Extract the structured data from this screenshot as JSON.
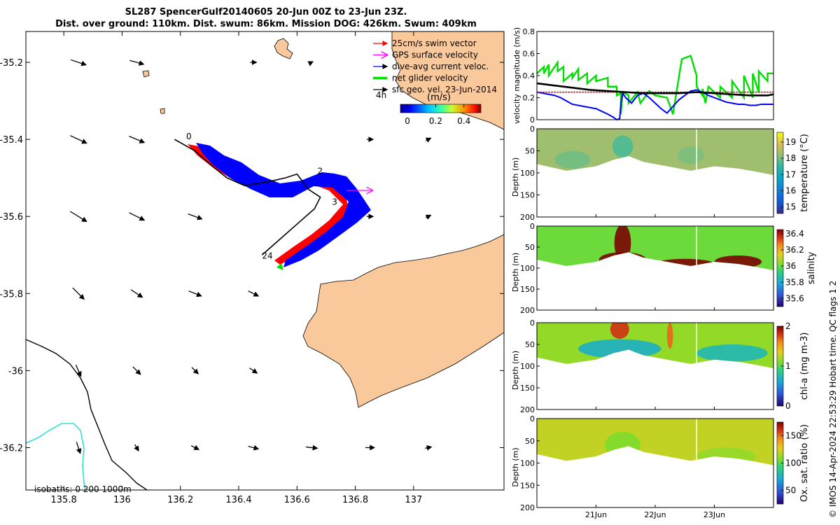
{
  "title_line1": "SL287 SpencerGulf20140605 20-Jun 00Z to 23-Jun 23Z.",
  "title_line2": "Dist. over ground: 110km. Dist. swum: 86km. Mission DOG: 426km. Swum: 409km",
  "credit": "© IMOS 14-Apr-2024 22:53:29 Hobart time. QC flags 1  2",
  "chart_data": [
    {
      "type": "map",
      "x_ticks": [
        "135.8",
        "136",
        "136.2",
        "136.4",
        "136.6",
        "136.8",
        "137"
      ],
      "x_tick_values": [
        135.8,
        136.0,
        136.2,
        136.4,
        136.6,
        136.8,
        137.0
      ],
      "y_ticks": [
        "-35.2",
        "-35.4",
        "-35.6",
        "-35.8",
        "-36",
        "-36.2"
      ],
      "y_tick_values": [
        -35.2,
        -35.4,
        -35.6,
        -35.8,
        -36.0,
        -36.2
      ],
      "xlim": [
        135.67,
        137.31
      ],
      "ylim": [
        -36.31,
        -35.12
      ],
      "legend": [
        {
          "label": "25cm/s swim vector",
          "color": "#ff0000"
        },
        {
          "label": "GPS surface velocity",
          "color": "#ff00ff"
        },
        {
          "label": "dive-avg current veloc.",
          "color": "#0000ff"
        },
        {
          "label": "net glider velocity",
          "color": "#00dd00"
        },
        {
          "label": "sfc geo. vel. 23-Jun-2014",
          "color": "#000000"
        }
      ],
      "legend_placement": "top-right",
      "time_label": "4h",
      "colorbar_title": "(m/s)",
      "colorbar_ticks": [
        "0",
        "0.2",
        "0.4"
      ],
      "colorbar_tick_values": [
        0,
        0.2,
        0.4
      ],
      "colorbar_range": [
        -0.05,
        0.52
      ],
      "isobaths_label": "isobaths: 0   200  1000m",
      "track_day_labels": [
        {
          "text": "0",
          "lon": 136.22,
          "lat": -35.4
        },
        {
          "text": "2",
          "lon": 136.67,
          "lat": -35.49
        },
        {
          "text": "3",
          "lon": 136.72,
          "lat": -35.57
        },
        {
          "text": "24",
          "lon": 136.48,
          "lat": -35.71
        }
      ],
      "track": [
        [
          136.18,
          -35.4
        ],
        [
          136.25,
          -35.43
        ],
        [
          136.31,
          -35.47
        ],
        [
          136.36,
          -35.5
        ],
        [
          136.42,
          -35.52
        ],
        [
          136.5,
          -35.51
        ],
        [
          136.56,
          -35.5
        ],
        [
          136.6,
          -35.49
        ],
        [
          136.64,
          -35.53
        ],
        [
          136.68,
          -35.55
        ],
        [
          136.66,
          -35.58
        ],
        [
          136.6,
          -35.62
        ],
        [
          136.54,
          -35.66
        ],
        [
          136.48,
          -35.7
        ]
      ],
      "current_vectors": [
        {
          "lon": 135.85,
          "lat": -35.2,
          "u": 0.12,
          "v": -0.04
        },
        {
          "lon": 136.05,
          "lat": -35.2,
          "u": 0.11,
          "v": -0.03
        },
        {
          "lon": 136.45,
          "lat": -35.2,
          "u": 0.05,
          "v": 0.0
        },
        {
          "lon": 136.65,
          "lat": -35.2,
          "u": 0.02,
          "v": 0.01
        },
        {
          "lon": 135.85,
          "lat": -35.4,
          "u": 0.13,
          "v": -0.06
        },
        {
          "lon": 136.05,
          "lat": -35.4,
          "u": 0.12,
          "v": -0.05
        },
        {
          "lon": 136.85,
          "lat": -35.4,
          "u": 0.05,
          "v": 0.0
        },
        {
          "lon": 137.05,
          "lat": -35.4,
          "u": 0.04,
          "v": 0.02
        },
        {
          "lon": 135.85,
          "lat": -35.6,
          "u": 0.13,
          "v": -0.08
        },
        {
          "lon": 136.05,
          "lat": -35.6,
          "u": 0.12,
          "v": -0.06
        },
        {
          "lon": 136.25,
          "lat": -35.6,
          "u": 0.11,
          "v": -0.04
        },
        {
          "lon": 136.85,
          "lat": -35.6,
          "u": 0.05,
          "v": 0.0
        },
        {
          "lon": 137.05,
          "lat": -35.6,
          "u": 0.04,
          "v": 0.02
        },
        {
          "lon": 135.85,
          "lat": -35.8,
          "u": 0.09,
          "v": -0.09
        },
        {
          "lon": 136.05,
          "lat": -35.8,
          "u": 0.09,
          "v": -0.06
        },
        {
          "lon": 136.25,
          "lat": -35.8,
          "u": 0.1,
          "v": -0.04
        },
        {
          "lon": 136.45,
          "lat": -35.8,
          "u": 0.08,
          "v": -0.04
        },
        {
          "lon": 135.85,
          "lat": -36.0,
          "u": 0.04,
          "v": -0.09
        },
        {
          "lon": 136.05,
          "lat": -36.0,
          "u": 0.06,
          "v": -0.06
        },
        {
          "lon": 136.25,
          "lat": -36.0,
          "u": 0.05,
          "v": -0.05
        },
        {
          "lon": 136.45,
          "lat": -36.0,
          "u": 0.06,
          "v": -0.04
        },
        {
          "lon": 135.85,
          "lat": -36.2,
          "u": 0.03,
          "v": -0.09
        },
        {
          "lon": 136.05,
          "lat": -36.2,
          "u": 0.03,
          "v": -0.05
        },
        {
          "lon": 136.25,
          "lat": -36.2,
          "u": 0.06,
          "v": -0.03
        },
        {
          "lon": 136.45,
          "lat": -36.2,
          "u": 0.08,
          "v": -0.02
        },
        {
          "lon": 136.65,
          "lat": -36.2,
          "u": 0.09,
          "v": -0.01
        },
        {
          "lon": 136.85,
          "lat": -36.2,
          "u": 0.07,
          "v": 0.0
        },
        {
          "lon": 137.05,
          "lat": -36.2,
          "u": 0.05,
          "v": 0.01
        }
      ]
    },
    {
      "type": "line",
      "ylabel": "velocity magnitude (m/s)",
      "ylim": [
        0,
        0.8
      ],
      "y_ticks": [
        "0",
        "0.2",
        "0.4",
        "0.6",
        "0.8"
      ],
      "y_tick_values": [
        0,
        0.2,
        0.4,
        0.6,
        0.8
      ],
      "xlim": [
        0,
        4
      ],
      "series": [
        {
          "color": "#00dd00",
          "x": [
            0,
            0.12,
            0.12,
            0.2,
            0.2,
            0.35,
            0.35,
            0.45,
            0.45,
            0.6,
            0.6,
            0.7,
            0.7,
            0.85,
            0.85,
            1.0,
            1.0,
            1.2,
            1.2,
            1.35,
            1.35,
            1.42,
            1.42,
            1.45,
            1.55,
            1.55,
            1.7,
            1.75,
            1.9,
            2.0,
            2.2,
            2.3,
            2.45,
            2.5,
            2.6,
            2.7,
            2.7,
            2.8,
            2.8,
            2.85,
            2.9,
            3.1,
            3.1,
            3.3,
            3.3,
            3.5,
            3.5,
            3.65,
            3.65,
            3.75,
            3.75,
            3.9,
            3.9,
            4.0
          ],
          "y": [
            0.42,
            0.48,
            0.42,
            0.5,
            0.4,
            0.52,
            0.44,
            0.48,
            0.35,
            0.42,
            0.38,
            0.46,
            0.36,
            0.42,
            0.33,
            0.4,
            0.35,
            0.38,
            0.3,
            0.3,
            0.22,
            0.24,
            0.05,
            0.25,
            0.22,
            0.15,
            0.25,
            0.15,
            0.26,
            0.22,
            0.2,
            0.05,
            0.55,
            0.56,
            0.58,
            0.4,
            0.3,
            0.22,
            0.28,
            0.15,
            0.3,
            0.2,
            0.3,
            0.2,
            0.35,
            0.2,
            0.4,
            0.2,
            0.42,
            0.25,
            0.44,
            0.35,
            0.42,
            0.42
          ]
        },
        {
          "color": "#0000ff",
          "x": [
            0,
            0.1,
            0.2,
            0.3,
            0.4,
            0.5,
            0.6,
            0.8,
            1.0,
            1.2,
            1.3,
            1.35,
            1.4,
            1.42,
            1.45,
            1.5,
            1.6,
            1.7,
            1.8,
            1.9,
            2.0,
            2.1,
            2.2,
            2.3,
            2.4,
            2.5,
            2.6,
            2.7,
            2.8,
            2.9,
            3.0,
            3.1,
            3.2,
            3.3,
            3.4,
            3.5,
            3.6,
            3.7,
            3.8,
            3.9,
            4.0
          ],
          "y": [
            0.25,
            0.24,
            0.23,
            0.22,
            0.2,
            0.17,
            0.14,
            0.12,
            0.1,
            0.05,
            0.02,
            0.0,
            0.01,
            0.15,
            0.24,
            0.2,
            0.15,
            0.22,
            0.24,
            0.2,
            0.15,
            0.1,
            0.06,
            0.12,
            0.18,
            0.22,
            0.26,
            0.27,
            0.25,
            0.22,
            0.2,
            0.18,
            0.16,
            0.15,
            0.14,
            0.14,
            0.13,
            0.13,
            0.14,
            0.14,
            0.14
          ]
        },
        {
          "color": "#ff0000",
          "x": [
            0,
            0.5,
            1.0,
            1.5,
            2.0,
            2.5,
            3.0,
            3.5,
            4.0
          ],
          "y": [
            0.25,
            0.25,
            0.25,
            0.25,
            0.25,
            0.25,
            0.25,
            0.25,
            0.25
          ]
        },
        {
          "color": "#000000",
          "x": [
            0,
            0.3,
            0.6,
            0.9,
            1.2,
            1.5,
            1.8,
            2.1,
            2.4,
            2.7,
            3.0,
            3.3,
            3.6,
            3.9,
            4.0
          ],
          "y": [
            0.33,
            0.31,
            0.29,
            0.27,
            0.26,
            0.25,
            0.24,
            0.24,
            0.24,
            0.25,
            0.24,
            0.23,
            0.22,
            0.22,
            0.23
          ]
        }
      ]
    },
    {
      "type": "heatmap",
      "variable": "temperature",
      "colorbar_label": "temperature (°C)",
      "colorbar_ticks": [
        "15",
        "16",
        "17",
        "18",
        "19"
      ],
      "colorbar_tick_values": [
        15,
        16,
        17,
        18,
        19
      ],
      "colorbar_range": [
        14.6,
        19.6
      ],
      "ylabel": "Depth (m)",
      "depth_ticks": [
        "0",
        "50",
        "100",
        "150",
        "200"
      ],
      "depth_tick_values": [
        0,
        50,
        100,
        150,
        200
      ],
      "ylim": [
        0,
        200
      ],
      "xlim": [
        0,
        4
      ],
      "bottom_depth": [
        [
          0,
          80
        ],
        [
          0.5,
          95
        ],
        [
          1.0,
          85
        ],
        [
          1.3,
          70
        ],
        [
          1.55,
          62
        ],
        [
          1.8,
          75
        ],
        [
          2.2,
          85
        ],
        [
          2.6,
          95
        ],
        [
          3.0,
          85
        ],
        [
          3.4,
          90
        ],
        [
          3.7,
          97
        ],
        [
          4.0,
          105
        ]
      ],
      "background_value": 18.3,
      "anomalies": [
        {
          "t": 1.45,
          "d": 40,
          "w": 0.35,
          "h": 25,
          "value": 17.6
        },
        {
          "t": 2.6,
          "d": 60,
          "w": 0.45,
          "h": 20,
          "value": 18.0
        },
        {
          "t": 0.6,
          "d": 70,
          "w": 0.6,
          "h": 20,
          "value": 17.9
        }
      ]
    },
    {
      "type": "heatmap",
      "variable": "salinity",
      "colorbar_label": "salinity",
      "colorbar_ticks": [
        "35.6",
        "35.8",
        "36",
        "36.2",
        "36.4"
      ],
      "colorbar_tick_values": [
        35.6,
        35.8,
        36.0,
        36.2,
        36.4
      ],
      "colorbar_range": [
        35.5,
        36.45
      ],
      "ylabel": "Depth (m)",
      "depth_ticks": [
        "0",
        "50",
        "100",
        "150",
        "200"
      ],
      "depth_tick_values": [
        0,
        50,
        100,
        150,
        200
      ],
      "ylim": [
        0,
        200
      ],
      "xlim": [
        0,
        4
      ],
      "bottom_depth": [
        [
          0,
          80
        ],
        [
          0.5,
          95
        ],
        [
          1.0,
          85
        ],
        [
          1.3,
          70
        ],
        [
          1.55,
          62
        ],
        [
          1.8,
          75
        ],
        [
          2.2,
          85
        ],
        [
          2.6,
          95
        ],
        [
          3.0,
          85
        ],
        [
          3.4,
          90
        ],
        [
          3.7,
          97
        ],
        [
          4.0,
          105
        ]
      ],
      "background_value": 35.95,
      "anomalies": [
        {
          "t": 1.45,
          "d": 40,
          "w": 0.28,
          "h": 45,
          "value": 36.45
        },
        {
          "t": 1.45,
          "d": 80,
          "w": 0.8,
          "h": 18,
          "value": 36.45
        },
        {
          "t": 2.5,
          "d": 90,
          "w": 1.0,
          "h": 12,
          "value": 36.45
        },
        {
          "t": 3.4,
          "d": 85,
          "w": 0.8,
          "h": 15,
          "value": 36.45
        }
      ]
    },
    {
      "type": "heatmap",
      "variable": "chl-a",
      "colorbar_label": "chl-a (mg m-3)",
      "colorbar_ticks": [
        "0",
        "1",
        "2"
      ],
      "colorbar_tick_values": [
        0,
        1,
        2
      ],
      "colorbar_range": [
        0,
        2
      ],
      "ylabel": "Depth (m)",
      "depth_ticks": [
        "0",
        "50",
        "100",
        "150",
        "200"
      ],
      "depth_tick_values": [
        0,
        50,
        100,
        150,
        200
      ],
      "ylim": [
        0,
        200
      ],
      "xlim": [
        0,
        4
      ],
      "bottom_depth": [
        [
          0,
          80
        ],
        [
          0.5,
          95
        ],
        [
          1.0,
          85
        ],
        [
          1.3,
          70
        ],
        [
          1.55,
          62
        ],
        [
          1.8,
          75
        ],
        [
          2.2,
          85
        ],
        [
          2.6,
          95
        ],
        [
          3.0,
          85
        ],
        [
          3.4,
          90
        ],
        [
          3.7,
          97
        ],
        [
          4.0,
          105
        ]
      ],
      "background_value": 1.05,
      "anomalies": [
        {
          "t": 1.4,
          "d": 15,
          "w": 0.32,
          "h": 22,
          "value": 1.75
        },
        {
          "t": 2.25,
          "d": 30,
          "w": 0.1,
          "h": 30,
          "value": 1.6
        },
        {
          "t": 1.4,
          "d": 60,
          "w": 1.4,
          "h": 22,
          "value": 0.55
        },
        {
          "t": 3.3,
          "d": 70,
          "w": 1.2,
          "h": 20,
          "value": 0.6
        }
      ]
    },
    {
      "type": "heatmap",
      "variable": "Ox. sat. ratio",
      "colorbar_label": "Ox. sat. ratio (%)",
      "colorbar_ticks": [
        "50",
        "100",
        "150"
      ],
      "colorbar_tick_values": [
        50,
        100,
        150
      ],
      "colorbar_range": [
        25,
        175
      ],
      "ylabel": "Depth (m)",
      "depth_ticks": [
        "0",
        "50",
        "100",
        "150",
        "200"
      ],
      "depth_tick_values": [
        0,
        50,
        100,
        150,
        200
      ],
      "ylim": [
        0,
        200
      ],
      "xlim": [
        0,
        4
      ],
      "x_ticks": [
        "21Jun",
        "22Jun",
        "23Jun"
      ],
      "x_tick_values": [
        1,
        2,
        3
      ],
      "bottom_depth": [
        [
          0,
          80
        ],
        [
          0.5,
          95
        ],
        [
          1.0,
          85
        ],
        [
          1.3,
          70
        ],
        [
          1.55,
          62
        ],
        [
          1.8,
          75
        ],
        [
          2.2,
          85
        ],
        [
          2.6,
          95
        ],
        [
          3.0,
          85
        ],
        [
          3.4,
          90
        ],
        [
          3.7,
          97
        ],
        [
          4.0,
          105
        ]
      ],
      "background_value": 112,
      "anomalies": [
        {
          "t": 1.45,
          "d": 60,
          "w": 0.6,
          "h": 30,
          "value": 100
        },
        {
          "t": 3.2,
          "d": 85,
          "w": 1.0,
          "h": 20,
          "value": 104
        }
      ]
    }
  ]
}
